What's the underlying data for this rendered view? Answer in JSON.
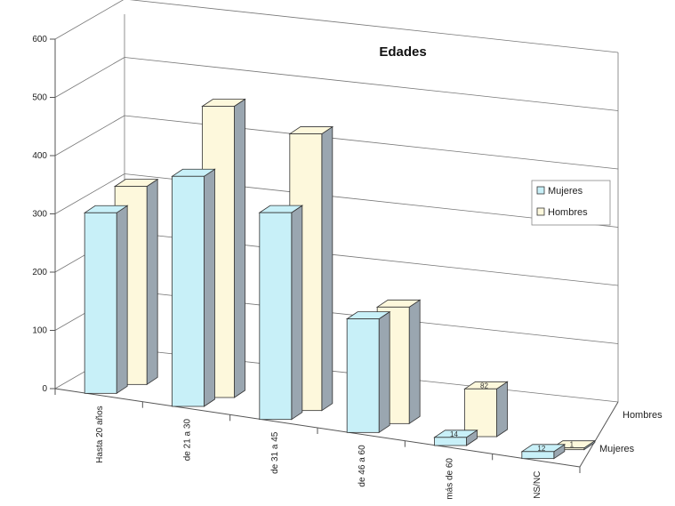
{
  "chart_data": {
    "type": "bar",
    "style": "3d-bar",
    "title": "Edades",
    "xlabel": "",
    "ylabel": "",
    "ylim": [
      0,
      600
    ],
    "yticks": [
      0,
      100,
      200,
      300,
      400,
      500,
      600
    ],
    "grid": true,
    "legend_position": "right",
    "categories": [
      "Hasta 20 años",
      "de 21 a 30",
      "de 31 a 45",
      "de 46 a 60",
      "más de 60",
      "NS/NC"
    ],
    "depth_labels": [
      "Hombres",
      "Mujeres"
    ],
    "legend": [
      "Mujeres",
      "Hombres"
    ],
    "series": [
      {
        "name": "Mujeres",
        "values": [
          310,
          395,
          355,
          195,
          14,
          12
        ],
        "color": "#c8f0f8",
        "value_labels": [
          "",
          "",
          "",
          "",
          "14",
          "12"
        ]
      },
      {
        "name": "Hombres",
        "values": [
          340,
          500,
          475,
          200,
          82,
          1
        ],
        "color": "#fdf8dc",
        "value_labels": [
          "",
          "",
          "",
          "",
          "82",
          "1"
        ]
      }
    ]
  }
}
